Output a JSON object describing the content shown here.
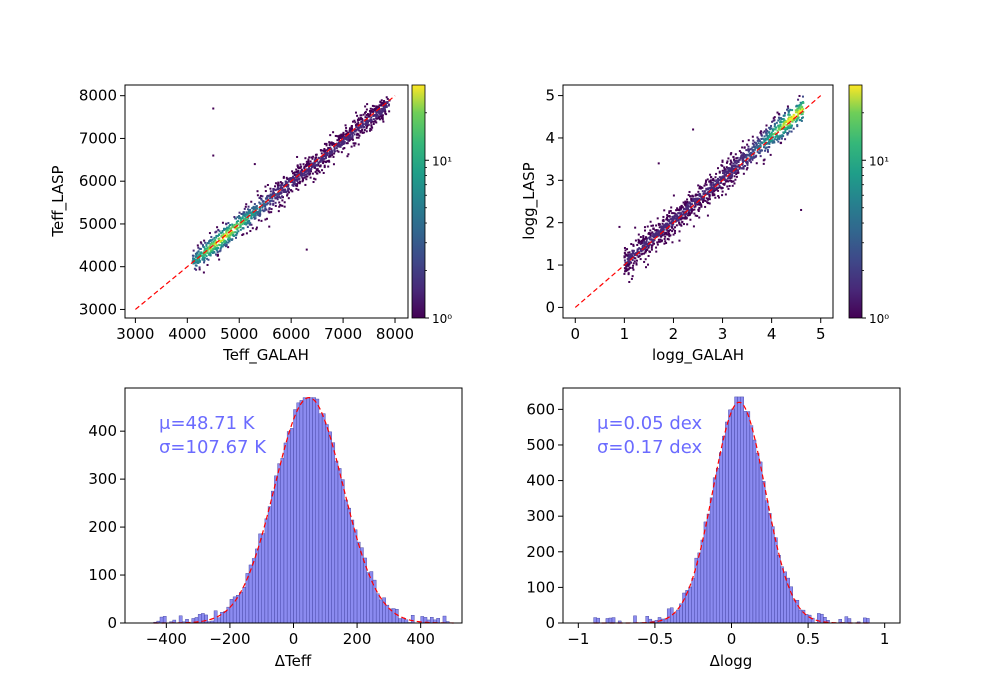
{
  "chart_data": [
    {
      "type": "scatter",
      "xlabel": "Teff_GALAH",
      "ylabel": "Teff_LASP",
      "xlim": [
        2800,
        8250
      ],
      "ylim": [
        2800,
        8250
      ],
      "xticks": [
        3000,
        4000,
        5000,
        6000,
        7000,
        8000
      ],
      "yticks": [
        3000,
        4000,
        5000,
        6000,
        7000,
        8000
      ],
      "one_to_one_line": [
        3000,
        8000
      ],
      "density": {
        "x_start": 4100,
        "x_end": 7900,
        "slope": 0.98,
        "intercept": 80,
        "scatter_sigma": 150,
        "peak_center": 4700,
        "outliers": [
          [
            4500,
            7700
          ],
          [
            4500,
            6600
          ],
          [
            5300,
            6400
          ],
          [
            6300,
            4400
          ]
        ]
      },
      "colorbar": {
        "scale": "log",
        "range": [
          1,
          30
        ],
        "ticks": [
          {
            "value": 1,
            "label": "10⁰"
          },
          {
            "value": 10,
            "label": "10¹"
          }
        ]
      }
    },
    {
      "type": "scatter",
      "xlabel": "logg_GALAH",
      "ylabel": "logg_LASP",
      "xlim": [
        -0.25,
        5.25
      ],
      "ylim": [
        -0.25,
        5.25
      ],
      "xticks": [
        0,
        1,
        2,
        3,
        4,
        5
      ],
      "yticks": [
        0,
        1,
        2,
        3,
        4,
        5
      ],
      "one_to_one_line": [
        0,
        5
      ],
      "density": {
        "x_start": 1.0,
        "x_end": 4.65,
        "slope": 1.0,
        "intercept": 0.05,
        "scatter_sigma": 0.18,
        "peak_center": 4.45,
        "outliers": [
          [
            0.9,
            1.9
          ],
          [
            1.1,
            0.6
          ],
          [
            1.7,
            3.4
          ],
          [
            2.4,
            4.2
          ],
          [
            4.6,
            2.3
          ]
        ]
      },
      "colorbar": {
        "scale": "log",
        "range": [
          1,
          30
        ],
        "ticks": [
          {
            "value": 1,
            "label": "10⁰"
          },
          {
            "value": 10,
            "label": "10¹"
          }
        ]
      }
    },
    {
      "type": "bar",
      "xlabel": "ΔTeff",
      "ylabel": "",
      "xlim": [
        -530,
        530
      ],
      "ylim": [
        0,
        490
      ],
      "xticks": [
        -400,
        -200,
        0,
        200,
        400
      ],
      "yticks": [
        0,
        100,
        200,
        300,
        400
      ],
      "bins": {
        "start": -440,
        "width": 10,
        "count": 95
      },
      "peak_count": 470,
      "annotation": {
        "mu": "μ=48.71 K",
        "sigma": "σ=107.67 K"
      },
      "gaussian_fit": {
        "mu": 48.71,
        "sigma": 107.67,
        "amplitude": 470
      }
    },
    {
      "type": "bar",
      "xlabel": "Δlogg",
      "ylabel": "",
      "xlim": [
        -1.1,
        1.1
      ],
      "ylim": [
        0,
        660
      ],
      "xticks": [
        -1.0,
        -0.5,
        0.0,
        0.5,
        1.0
      ],
      "yticks": [
        0,
        100,
        200,
        300,
        400,
        500,
        600
      ],
      "bins": {
        "start": -0.9,
        "width": 0.02,
        "count": 90
      },
      "peak_count": 635,
      "annotation": {
        "mu": "μ=0.05 dex",
        "sigma": "σ=0.17 dex"
      },
      "gaussian_fit": {
        "mu": 0.05,
        "sigma": 0.17,
        "amplitude": 620
      }
    }
  ]
}
